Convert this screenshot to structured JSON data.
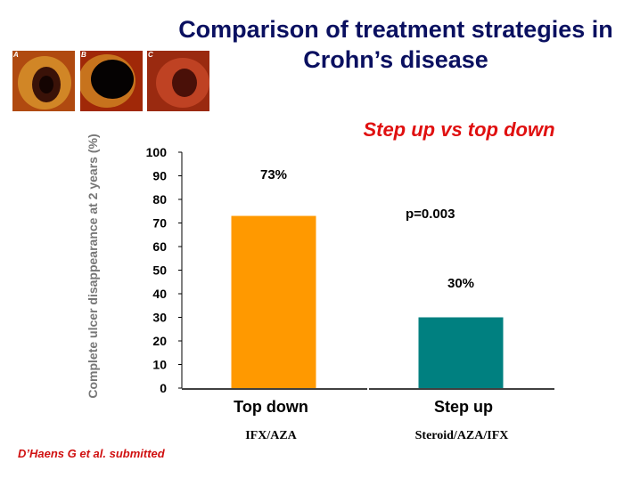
{
  "slide": {
    "title": "Comparison of treatment strategies in Crohn’s disease",
    "subtitle": "Step up vs top down",
    "citation": "D’Haens G et al. submitted",
    "thumbnails": [
      {
        "letter": "A",
        "colors": [
          "#3a1208",
          "#b04a10",
          "#e0a030"
        ]
      },
      {
        "letter": "B",
        "colors": [
          "#050202",
          "#a02808",
          "#e8b030"
        ]
      },
      {
        "letter": "C",
        "colors": [
          "#4a1008",
          "#9a2a10",
          "#c84828"
        ]
      }
    ]
  },
  "chart_data": {
    "type": "bar",
    "categories": [
      "Top down",
      "Step up"
    ],
    "sublabels": [
      "IFX/AZA",
      "Steroid/AZA/IFX"
    ],
    "values": [
      73,
      30
    ],
    "data_labels": [
      "73%",
      "30%"
    ],
    "colors": [
      "#ff9900",
      "#008080"
    ],
    "ylabel": "Complete ulcer disappearance at 2 years (%)",
    "ylim": [
      0,
      100
    ],
    "yticks": [
      0,
      10,
      20,
      30,
      40,
      50,
      60,
      70,
      80,
      90,
      100
    ],
    "annotation": "p=0.003",
    "grid": false
  }
}
